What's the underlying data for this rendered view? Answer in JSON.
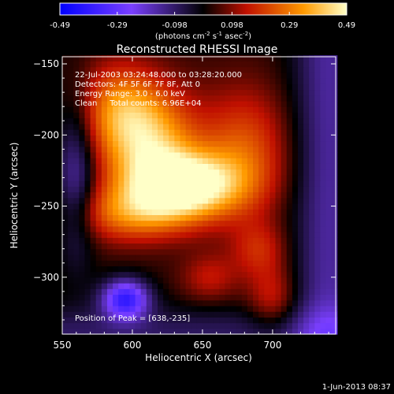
{
  "chart_data": {
    "type": "heatmap",
    "title": "Reconstructed RHESSI Image",
    "xlabel": "Heliocentric X (arcsec)",
    "ylabel": "Heliocentric Y (arcsec)",
    "xlim": [
      550,
      745
    ],
    "ylim": [
      -340,
      -145
    ],
    "x_ticks": [
      550,
      600,
      650,
      700
    ],
    "y_ticks": [
      -150,
      -200,
      -250,
      -300
    ],
    "colorbar": {
      "ticks": [
        "-0.49",
        "-0.29",
        "-0.098",
        "0.098",
        "0.29",
        "0.49"
      ],
      "range": [
        -0.49,
        0.49
      ],
      "unit_prefix": "(photons cm",
      "unit_exp1": "-2",
      "unit_mid": " s",
      "unit_exp2": "-1",
      "unit_mid2": " asec",
      "unit_exp3": "-2",
      "unit_suffix": ")"
    },
    "annotations": [
      "22-Jul-2003 03:24:48.000 to 03:28:20.000",
      "Detectors: 4F 5F 6F 7F 8F, Att 0",
      "Energy Range: 3.0 - 6.0 keV",
      "Clean     Total counts: 6.96E+04"
    ],
    "peak_label": "Position of Peak = [638,-235]",
    "peak": [
      638,
      -235
    ],
    "sources": [
      {
        "x": 638,
        "y": -235,
        "amp": 0.49,
        "sx": 28,
        "sy": 16
      },
      {
        "x": 612,
        "y": -205,
        "amp": 0.34,
        "sx": 24,
        "sy": 26
      },
      {
        "x": 590,
        "y": -180,
        "amp": 0.22,
        "sx": 20,
        "sy": 22
      },
      {
        "x": 600,
        "y": -255,
        "amp": 0.24,
        "sx": 30,
        "sy": 14
      },
      {
        "x": 680,
        "y": -210,
        "amp": 0.2,
        "sx": 22,
        "sy": 30
      },
      {
        "x": 690,
        "y": -280,
        "amp": 0.14,
        "sx": 14,
        "sy": 14
      },
      {
        "x": 700,
        "y": -315,
        "amp": 0.14,
        "sx": 12,
        "sy": 16
      },
      {
        "x": 655,
        "y": -300,
        "amp": 0.12,
        "sx": 14,
        "sy": 12
      },
      {
        "x": 595,
        "y": -315,
        "amp": -0.4,
        "sx": 12,
        "sy": 10
      },
      {
        "x": 560,
        "y": -230,
        "amp": -0.2,
        "sx": 10,
        "sy": 40
      }
    ],
    "background": 0.03
  },
  "footer_timestamp": "1-Jun-2013 08:37"
}
